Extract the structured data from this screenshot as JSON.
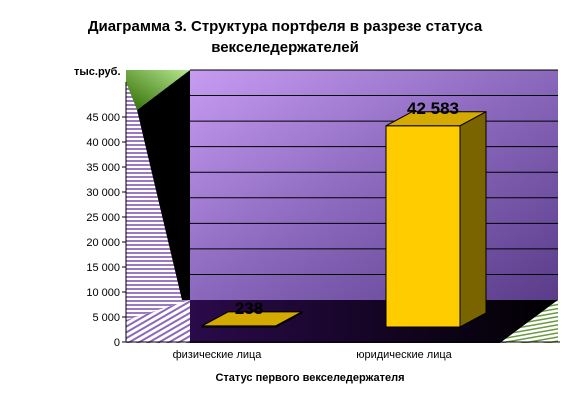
{
  "chart_data": {
    "type": "bar",
    "title_line1": "Диаграмма 3. Структура портфеля в разрезе статуса",
    "title_line2": "векселедержателей",
    "ylabel": "тыс.руб.",
    "xlabel": "Статус   первого векселедержателя",
    "categories": [
      "физические лица",
      "юридические лица"
    ],
    "values": [
      238,
      42583
    ],
    "data_labels": [
      "238",
      "42 583"
    ],
    "ylim": [
      0,
      45000
    ],
    "y_ticks": [
      0,
      5000,
      10000,
      15000,
      20000,
      25000,
      30000,
      35000,
      40000,
      45000
    ],
    "y_tick_labels": [
      "0",
      "5 000",
      "10 000",
      "15 000",
      "20 000",
      "25 000",
      "30 000",
      "35 000",
      "40 000",
      "45 000"
    ],
    "grid": true,
    "legend": "none",
    "colors": {
      "bar_front": "#ffcc00",
      "bar_side": "#7a6400",
      "bar_top": "#d4a900",
      "wall": "#7a58a8",
      "gridline": "#000000"
    }
  }
}
